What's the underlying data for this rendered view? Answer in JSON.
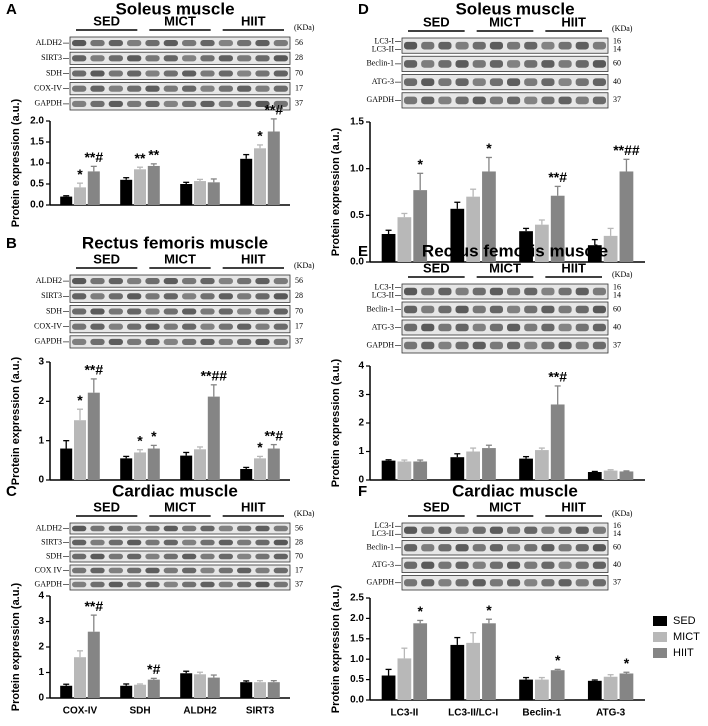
{
  "chart_data": [
    {
      "type": "bar",
      "panel": "A",
      "title": "Soleus muscle",
      "blot": {
        "groups": [
          "SED",
          "MICT",
          "HIIT"
        ],
        "unit": "(KDa)",
        "rows": [
          {
            "labels": [
              "ALDH2"
            ],
            "kda": [
              56
            ]
          },
          {
            "labels": [
              "SIRT3"
            ],
            "kda": [
              28
            ]
          },
          {
            "labels": [
              "SDH"
            ],
            "kda": [
              70
            ]
          },
          {
            "labels": [
              "COX-IV"
            ],
            "kda": [
              17
            ]
          },
          {
            "labels": [
              "GAPDH"
            ],
            "kda": [
              37
            ]
          }
        ]
      },
      "y_label": "Protein expression (a.u.)",
      "categories": [
        null,
        null,
        null,
        null
      ],
      "ylim": [
        0,
        2
      ],
      "yticks": [
        {
          "value": 0,
          "label": "0.0"
        },
        0.5,
        {
          "value": 1,
          "label": "1.0"
        },
        1.5,
        {
          "value": 2,
          "label": "2.0"
        }
      ],
      "series": [
        {
          "color": "#000000",
          "values": [
            0.2,
            0.6,
            0.5,
            1.1
          ],
          "errors": [
            0.02,
            0.05,
            0.04,
            0.1
          ],
          "annotations": [
            null,
            null,
            null,
            null
          ]
        },
        {
          "color": "#b8b8b8",
          "values": [
            0.42,
            0.85,
            0.57,
            1.35
          ],
          "errors": [
            0.1,
            0.05,
            0.04,
            0.08
          ],
          "annotations": [
            "*",
            "**",
            null,
            "*"
          ]
        },
        {
          "color": "#858585",
          "values": [
            0.8,
            0.93,
            0.54,
            1.75
          ],
          "errors": [
            0.12,
            0.05,
            0.08,
            0.3
          ],
          "annotations": [
            "**#",
            "**",
            null,
            "**#"
          ]
        }
      ]
    },
    {
      "type": "bar",
      "panel": "B",
      "title": "Rectus femoris muscle",
      "blot": {
        "groups": [
          "SED",
          "MICT",
          "HIIT"
        ],
        "unit": "(KDa)",
        "rows": [
          {
            "labels": [
              "ALDH2"
            ],
            "kda": [
              56
            ]
          },
          {
            "labels": [
              "SIRT3"
            ],
            "kda": [
              28
            ]
          },
          {
            "labels": [
              "SDH"
            ],
            "kda": [
              70
            ]
          },
          {
            "labels": [
              "COX-IV"
            ],
            "kda": [
              17
            ]
          },
          {
            "labels": [
              "GAPDH"
            ],
            "kda": [
              37
            ]
          }
        ]
      },
      "y_label": "Protein expression (a.u.)",
      "categories": [
        null,
        null,
        null,
        null
      ],
      "ylim": [
        0,
        3
      ],
      "yticks": [
        0,
        1,
        2,
        3
      ],
      "series": [
        {
          "color": "#000000",
          "values": [
            0.8,
            0.55,
            0.62,
            0.28
          ],
          "errors": [
            0.2,
            0.05,
            0.08,
            0.04
          ],
          "annotations": [
            null,
            null,
            null,
            null
          ]
        },
        {
          "color": "#b8b8b8",
          "values": [
            1.52,
            0.7,
            0.78,
            0.55
          ],
          "errors": [
            0.28,
            0.07,
            0.06,
            0.05
          ],
          "annotations": [
            "*",
            "*",
            null,
            "*"
          ]
        },
        {
          "color": "#858585",
          "values": [
            2.22,
            0.8,
            2.12,
            0.8
          ],
          "errors": [
            0.35,
            0.08,
            0.3,
            0.1
          ],
          "annotations": [
            "**#",
            "*",
            "**##",
            "**#"
          ]
        }
      ]
    },
    {
      "type": "bar",
      "panel": "C",
      "title": "Cardiac muscle",
      "blot": {
        "groups": [
          "SED",
          "MICT",
          "HIIT"
        ],
        "unit": "(KDa)",
        "rows": [
          {
            "labels": [
              "ALDH2"
            ],
            "kda": [
              56
            ]
          },
          {
            "labels": [
              "SIRT3"
            ],
            "kda": [
              28
            ]
          },
          {
            "labels": [
              "SDH"
            ],
            "kda": [
              70
            ]
          },
          {
            "labels": [
              "COX IV"
            ],
            "kda": [
              17
            ]
          },
          {
            "labels": [
              "GAPDH"
            ],
            "kda": [
              37
            ]
          }
        ]
      },
      "y_label": "Protein expression (a.u.)",
      "categories": [
        "COX-IV",
        "SDH",
        "ALDH2",
        "SIRT3"
      ],
      "ylim": [
        0,
        4
      ],
      "yticks": [
        0,
        1,
        2,
        3,
        4
      ],
      "series": [
        {
          "color": "#000000",
          "values": [
            0.48,
            0.48,
            0.97,
            0.62
          ],
          "errors": [
            0.06,
            0.07,
            0.08,
            0.05
          ],
          "annotations": [
            null,
            null,
            null,
            null
          ]
        },
        {
          "color": "#b8b8b8",
          "values": [
            1.6,
            0.52,
            0.93,
            0.62
          ],
          "errors": [
            0.25,
            0.03,
            0.08,
            0.06
          ],
          "annotations": [
            null,
            null,
            null,
            null
          ]
        },
        {
          "color": "#858585",
          "values": [
            2.6,
            0.72,
            0.8,
            0.62
          ],
          "errors": [
            0.65,
            0.05,
            0.1,
            0.06
          ],
          "annotations": [
            "**#",
            "*#",
            null,
            null
          ]
        }
      ]
    },
    {
      "type": "bar",
      "panel": "D",
      "title": "Soleus muscle",
      "blot": {
        "groups": [
          "SED",
          "MICT",
          "HIIT"
        ],
        "unit": "(KDa)",
        "rows": [
          {
            "labels": [
              "LC3-I",
              "LC3-II"
            ],
            "kda": [
              16,
              14
            ]
          },
          {
            "labels": [
              "Beclin-1"
            ],
            "kda": [
              60
            ]
          },
          {
            "labels": [
              "ATG-3"
            ],
            "kda": [
              40
            ]
          },
          {
            "labels": [
              "GAPDH"
            ],
            "kda": [
              37
            ]
          }
        ]
      },
      "y_label": "Protein expression (a.u.)",
      "categories": [
        null,
        null,
        null,
        null
      ],
      "ylim": [
        0,
        1.5
      ],
      "yticks": [
        {
          "value": 0,
          "label": "0.0"
        },
        0.5,
        {
          "value": 1,
          "label": "1.0"
        },
        1.5
      ],
      "series": [
        {
          "color": "#000000",
          "values": [
            0.3,
            0.57,
            0.33,
            0.18
          ],
          "errors": [
            0.04,
            0.07,
            0.03,
            0.06
          ],
          "annotations": [
            null,
            null,
            null,
            null
          ]
        },
        {
          "color": "#b8b8b8",
          "values": [
            0.48,
            0.7,
            0.4,
            0.28
          ],
          "errors": [
            0.04,
            0.08,
            0.05,
            0.08
          ],
          "annotations": [
            null,
            null,
            null,
            null
          ]
        },
        {
          "color": "#858585",
          "values": [
            0.77,
            0.97,
            0.71,
            0.97
          ],
          "errors": [
            0.18,
            0.15,
            0.1,
            0.13
          ],
          "annotations": [
            "*",
            "*",
            "**#",
            "**##"
          ]
        }
      ]
    },
    {
      "type": "bar",
      "panel": "E",
      "title": "Rectus femoris muscle",
      "blot": {
        "groups": [
          "SED",
          "MICT",
          "HIIT"
        ],
        "unit": "(KDa)",
        "rows": [
          {
            "labels": [
              "LC3-I",
              "LC3-II"
            ],
            "kda": [
              16,
              14
            ]
          },
          {
            "labels": [
              "Beclin-1"
            ],
            "kda": [
              60
            ]
          },
          {
            "labels": [
              "ATG-3"
            ],
            "kda": [
              40
            ]
          },
          {
            "labels": [
              "GAPDH"
            ],
            "kda": [
              37
            ]
          }
        ]
      },
      "y_label": "Protein expression (a.u.)",
      "categories": [
        null,
        null,
        null,
        null
      ],
      "ylim": [
        0,
        4
      ],
      "yticks": [
        0,
        1,
        2,
        3,
        4
      ],
      "series": [
        {
          "color": "#000000",
          "values": [
            0.68,
            0.8,
            0.75,
            0.28
          ],
          "errors": [
            0.03,
            0.12,
            0.07,
            0.02
          ],
          "annotations": [
            null,
            null,
            null,
            null
          ]
        },
        {
          "color": "#b8b8b8",
          "values": [
            0.65,
            1.0,
            1.05,
            0.33
          ],
          "errors": [
            0.05,
            0.12,
            0.07,
            0.03
          ],
          "annotations": [
            null,
            null,
            null,
            null
          ]
        },
        {
          "color": "#858585",
          "values": [
            0.65,
            1.12,
            2.65,
            0.3
          ],
          "errors": [
            0.05,
            0.1,
            0.65,
            0.02
          ],
          "annotations": [
            null,
            null,
            "**#",
            null
          ]
        }
      ]
    },
    {
      "type": "bar",
      "panel": "F",
      "title": "Cardiac muscle",
      "blot": {
        "groups": [
          "SED",
          "MICT",
          "HIIT"
        ],
        "unit": "(KDa)",
        "rows": [
          {
            "labels": [
              "LC3-I",
              "LC3-II"
            ],
            "kda": [
              16,
              14
            ]
          },
          {
            "labels": [
              "Beclin-1"
            ],
            "kda": [
              60
            ]
          },
          {
            "labels": [
              "ATG-3"
            ],
            "kda": [
              40
            ]
          },
          {
            "labels": [
              "GAPDH"
            ],
            "kda": [
              37
            ]
          }
        ]
      },
      "y_label": "Protein expression (a.u.)",
      "categories": [
        "LC3-II",
        "LC3-II/LC-I",
        "Beclin-1",
        "ATG-3"
      ],
      "ylim": [
        0,
        2.5
      ],
      "yticks": [
        {
          "value": 0,
          "label": "0.0"
        },
        0.5,
        {
          "value": 1,
          "label": "1.0"
        },
        1.5,
        {
          "value": 2,
          "label": "2.0"
        },
        2.5
      ],
      "legend": "right",
      "series": [
        {
          "name": "SED",
          "color": "#000000",
          "values": [
            0.6,
            1.35,
            0.5,
            0.47
          ],
          "errors": [
            0.15,
            0.18,
            0.05,
            0.02
          ],
          "annotations": [
            null,
            null,
            null,
            null
          ]
        },
        {
          "name": "MICT",
          "color": "#b8b8b8",
          "values": [
            1.02,
            1.4,
            0.5,
            0.57
          ],
          "errors": [
            0.25,
            0.25,
            0.05,
            0.05
          ],
          "annotations": [
            null,
            null,
            null,
            null
          ]
        },
        {
          "name": "HIIT",
          "color": "#858585",
          "values": [
            1.88,
            1.88,
            0.73,
            0.65
          ],
          "errors": [
            0.07,
            0.1,
            0.02,
            0.03
          ],
          "annotations": [
            "*",
            "*",
            "*",
            "*"
          ]
        }
      ]
    }
  ]
}
